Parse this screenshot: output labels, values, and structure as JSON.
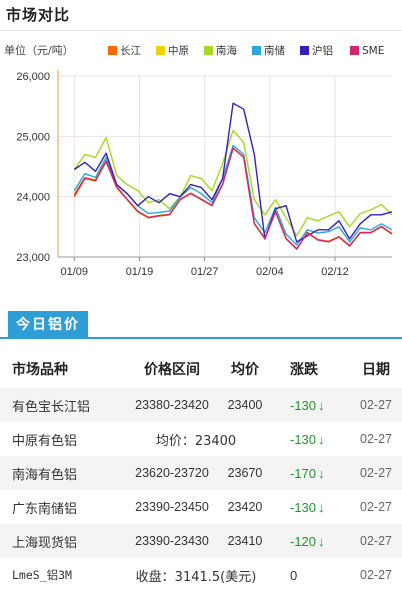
{
  "section": {
    "title": "市场对比"
  },
  "tab": {
    "label": "今日铝价"
  },
  "chart_data": {
    "type": "line",
    "ylabel": "单位（元/吨）",
    "ylim": [
      23000,
      26000
    ],
    "yticks": [
      23000,
      24000,
      25000,
      26000
    ],
    "ytick_labels": [
      "23,000",
      "24,000",
      "25,000",
      "26,000"
    ],
    "xticks": [
      {
        "at": 2,
        "label": "01/09"
      },
      {
        "at": 10,
        "label": "01/19"
      },
      {
        "at": 18,
        "label": "01/27"
      },
      {
        "at": 26,
        "label": "02/04"
      },
      {
        "at": 34,
        "label": "02/12"
      }
    ],
    "x_count": 42,
    "legend_position": "top-right",
    "series": [
      {
        "name": "长江",
        "color": "#ff6a00",
        "values": [
          24000,
          24300,
          24260,
          24580,
          24150,
          23950,
          23750,
          23650,
          23680,
          23700,
          23950,
          24050,
          23950,
          23850,
          24200,
          24800,
          24650,
          23550,
          23300,
          23750,
          23300,
          23130,
          23400,
          23280,
          23250,
          23330,
          23180,
          23400,
          23400,
          23500,
          23380
        ]
      },
      {
        "name": "中原",
        "color": "#f2d200",
        "values": [
          24050,
          24320,
          24280,
          24600,
          24170,
          23960,
          23760,
          23660,
          23690,
          23710,
          23960,
          24060,
          23960,
          23860,
          24210,
          24810,
          24660,
          23560,
          23310,
          23760,
          23310,
          23140,
          23410,
          23290,
          23260,
          23340,
          23190,
          23410,
          23410,
          23510,
          23390
        ]
      },
      {
        "name": "南海",
        "color": "#a8d820",
        "values": [
          24450,
          24700,
          24650,
          24980,
          24350,
          24200,
          24100,
          23900,
          23950,
          23800,
          24000,
          24350,
          24300,
          24100,
          24550,
          25100,
          24900,
          23950,
          23700,
          23950,
          23650,
          23350,
          23650,
          23600,
          23680,
          23750,
          23500,
          23720,
          23780,
          23870,
          23700
        ]
      },
      {
        "name": "南储",
        "color": "#2aa6dc",
        "values": [
          24100,
          24380,
          24320,
          24650,
          24200,
          24050,
          23850,
          23720,
          23740,
          23760,
          24000,
          24150,
          24050,
          23900,
          24300,
          24850,
          24700,
          23650,
          23400,
          23820,
          23380,
          23200,
          23450,
          23400,
          23420,
          23500,
          23250,
          23480,
          23450,
          23550,
          23450
        ]
      },
      {
        "name": "沪铝",
        "color": "#3020c0",
        "values": [
          24450,
          24570,
          24420,
          24720,
          24200,
          24050,
          23850,
          24000,
          23900,
          24050,
          24000,
          24200,
          24150,
          23950,
          24300,
          25550,
          25450,
          24700,
          23300,
          23800,
          23850,
          23250,
          23350,
          23450,
          23450,
          23600,
          23300,
          23550,
          23700,
          23700,
          23750
        ]
      },
      {
        "name": "SME",
        "color": "#d4246e",
        "values": [
          24020,
          24310,
          24270,
          24590,
          24160,
          23955,
          23755,
          23655,
          23685,
          23705,
          23955,
          24055,
          23955,
          23855,
          24205,
          24805,
          24655,
          23555,
          23305,
          23755,
          23305,
          23135,
          23405,
          23285,
          23255,
          23335,
          23185,
          23405,
          23405,
          23505,
          23385
        ]
      }
    ]
  },
  "table": {
    "headers": {
      "name": "市场品种",
      "range": "价格区间",
      "avg": "均价",
      "change": "涨跌",
      "date": "日期"
    },
    "rows": [
      {
        "name": "有色宝长江铝",
        "range": "23380-23420",
        "avg": "23400",
        "change": "-130",
        "date": "02-27"
      },
      {
        "name": "中原有色铝",
        "merged": "均价：23400",
        "change": "-130",
        "date": "02-27"
      },
      {
        "name": "南海有色铝",
        "range": "23620-23720",
        "avg": "23670",
        "change": "-170",
        "date": "02-27"
      },
      {
        "name": "广东南储铝",
        "range": "23390-23450",
        "avg": "23420",
        "change": "-130",
        "date": "02-27"
      },
      {
        "name": "上海现货铝",
        "range": "23390-23430",
        "avg": "23410",
        "change": "-120",
        "date": "02-27"
      },
      {
        "name": "LmeS_铝3M",
        "merged": "收盘：3141.5(美元)",
        "change": "0",
        "date": "02-27"
      }
    ]
  }
}
